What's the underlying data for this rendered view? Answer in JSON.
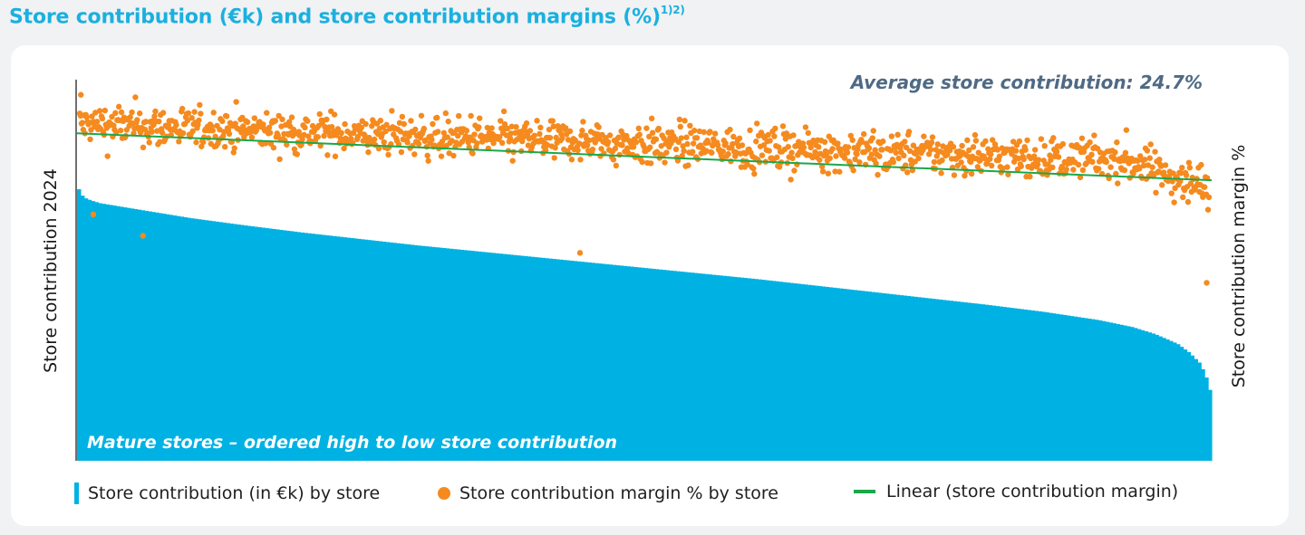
{
  "title": {
    "text": "Store contribution (€k) and store contribution margins (%)",
    "footnote": "1)2)"
  },
  "colors": {
    "title": "#1ab0e0",
    "bars": "#00b2e3",
    "dots": "#f58a1f",
    "trend": "#1aa84a",
    "annotation": "#4f6a84",
    "card": "#ffffff",
    "background": "#f1f2f4"
  },
  "chart_data": {
    "type": "bar",
    "title": "Store contribution (€k) and store contribution margins (%)",
    "xlabel": "",
    "ylabel": "Store contribution 2024",
    "y2label": "Store contribution margin %",
    "axis_ticks": "none",
    "grid": false,
    "legend_position": "bottom",
    "annotations": {
      "average": "Average store contribution: 24.7%",
      "x_note": "Mature stores – ordered high to low store contribution"
    },
    "legend": [
      "Store contribution (in €k) by store",
      "Store contribution margin % by store",
      "Linear (store contribution margin)"
    ],
    "series": [
      {
        "name": "Store contribution (in €k) by store",
        "type": "bar",
        "description": "approx. 1,300 stores sorted descending; values relative to the leftmost store (=1.00)",
        "profile_rank_fraction": [
          0.0,
          0.001,
          0.003,
          0.006,
          0.012,
          0.02,
          0.035,
          0.05,
          0.1,
          0.15,
          0.2,
          0.3,
          0.4,
          0.5,
          0.6,
          0.7,
          0.8,
          0.85,
          0.9,
          0.93,
          0.95,
          0.97,
          0.98,
          0.99,
          0.995,
          1.0
        ],
        "profile_relative_value": [
          1.0,
          0.97,
          0.95,
          0.935,
          0.925,
          0.915,
          0.905,
          0.895,
          0.862,
          0.835,
          0.81,
          0.765,
          0.725,
          0.685,
          0.645,
          0.6,
          0.555,
          0.53,
          0.5,
          0.475,
          0.45,
          0.415,
          0.385,
          0.345,
          0.3,
          0.23
        ]
      },
      {
        "name": "Store contribution margin % by store",
        "type": "scatter",
        "description": "one dot per store; relative margin band, roughly 0.56–0.95 of y2 range",
        "trend_start": 0.92,
        "trend_end": 0.83,
        "spread": 0.06,
        "outliers_rank_fraction": [
          0.001,
          0.012,
          0.056,
          0.443,
          0.998
        ],
        "outliers_relative_value": [
          0.99,
          0.71,
          0.66,
          0.62,
          0.55
        ]
      },
      {
        "name": "Linear (store contribution margin)",
        "type": "line",
        "start_relative_value": 0.9,
        "end_relative_value": 0.79
      }
    ],
    "store_count_estimate": 1300
  }
}
